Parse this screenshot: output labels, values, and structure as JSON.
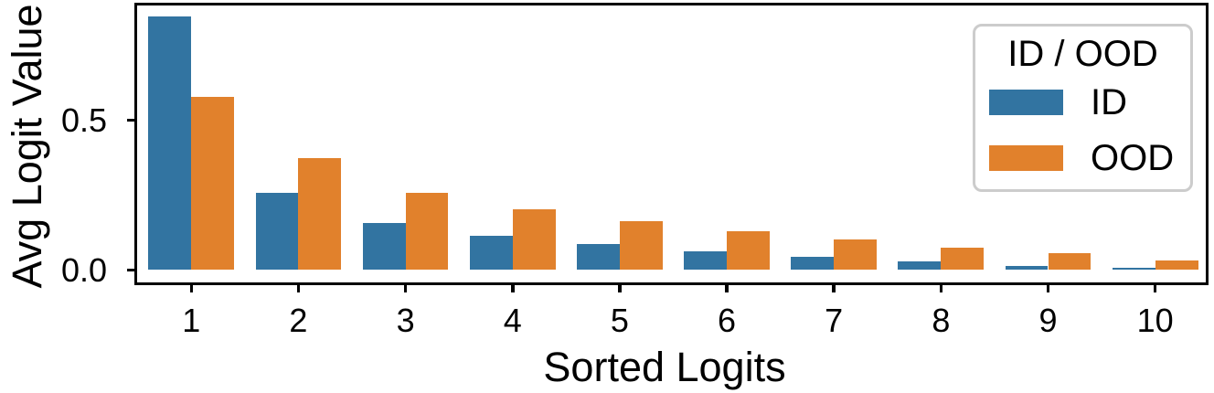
{
  "chart_data": {
    "type": "bar",
    "title": "",
    "xlabel": "Sorted Logits",
    "ylabel": "Avg Logit Value",
    "categories": [
      "1",
      "2",
      "3",
      "4",
      "5",
      "6",
      "7",
      "8",
      "9",
      "10"
    ],
    "series": [
      {
        "name": "ID",
        "color": "#3274a1",
        "values": [
          0.845,
          0.257,
          0.157,
          0.115,
          0.088,
          0.062,
          0.044,
          0.028,
          0.013,
          0.008
        ]
      },
      {
        "name": "OOD",
        "color": "#e1812c",
        "values": [
          0.579,
          0.373,
          0.258,
          0.203,
          0.162,
          0.129,
          0.101,
          0.076,
          0.055,
          0.032
        ]
      }
    ],
    "ylim": [
      -0.045,
      0.89
    ],
    "yticks": [
      {
        "value": 0.0,
        "label": "0.0"
      },
      {
        "value": 0.5,
        "label": "0.5"
      }
    ],
    "grid": false,
    "legend": {
      "position": "upper-right",
      "title": "ID / OOD",
      "entries": [
        {
          "label": "ID",
          "color": "#3274a1"
        },
        {
          "label": "OOD",
          "color": "#e1812c"
        }
      ]
    }
  },
  "colors": {
    "background": "#ffffff",
    "spine": "#000000",
    "text": "#000000",
    "legend_border": "#cccccc"
  }
}
